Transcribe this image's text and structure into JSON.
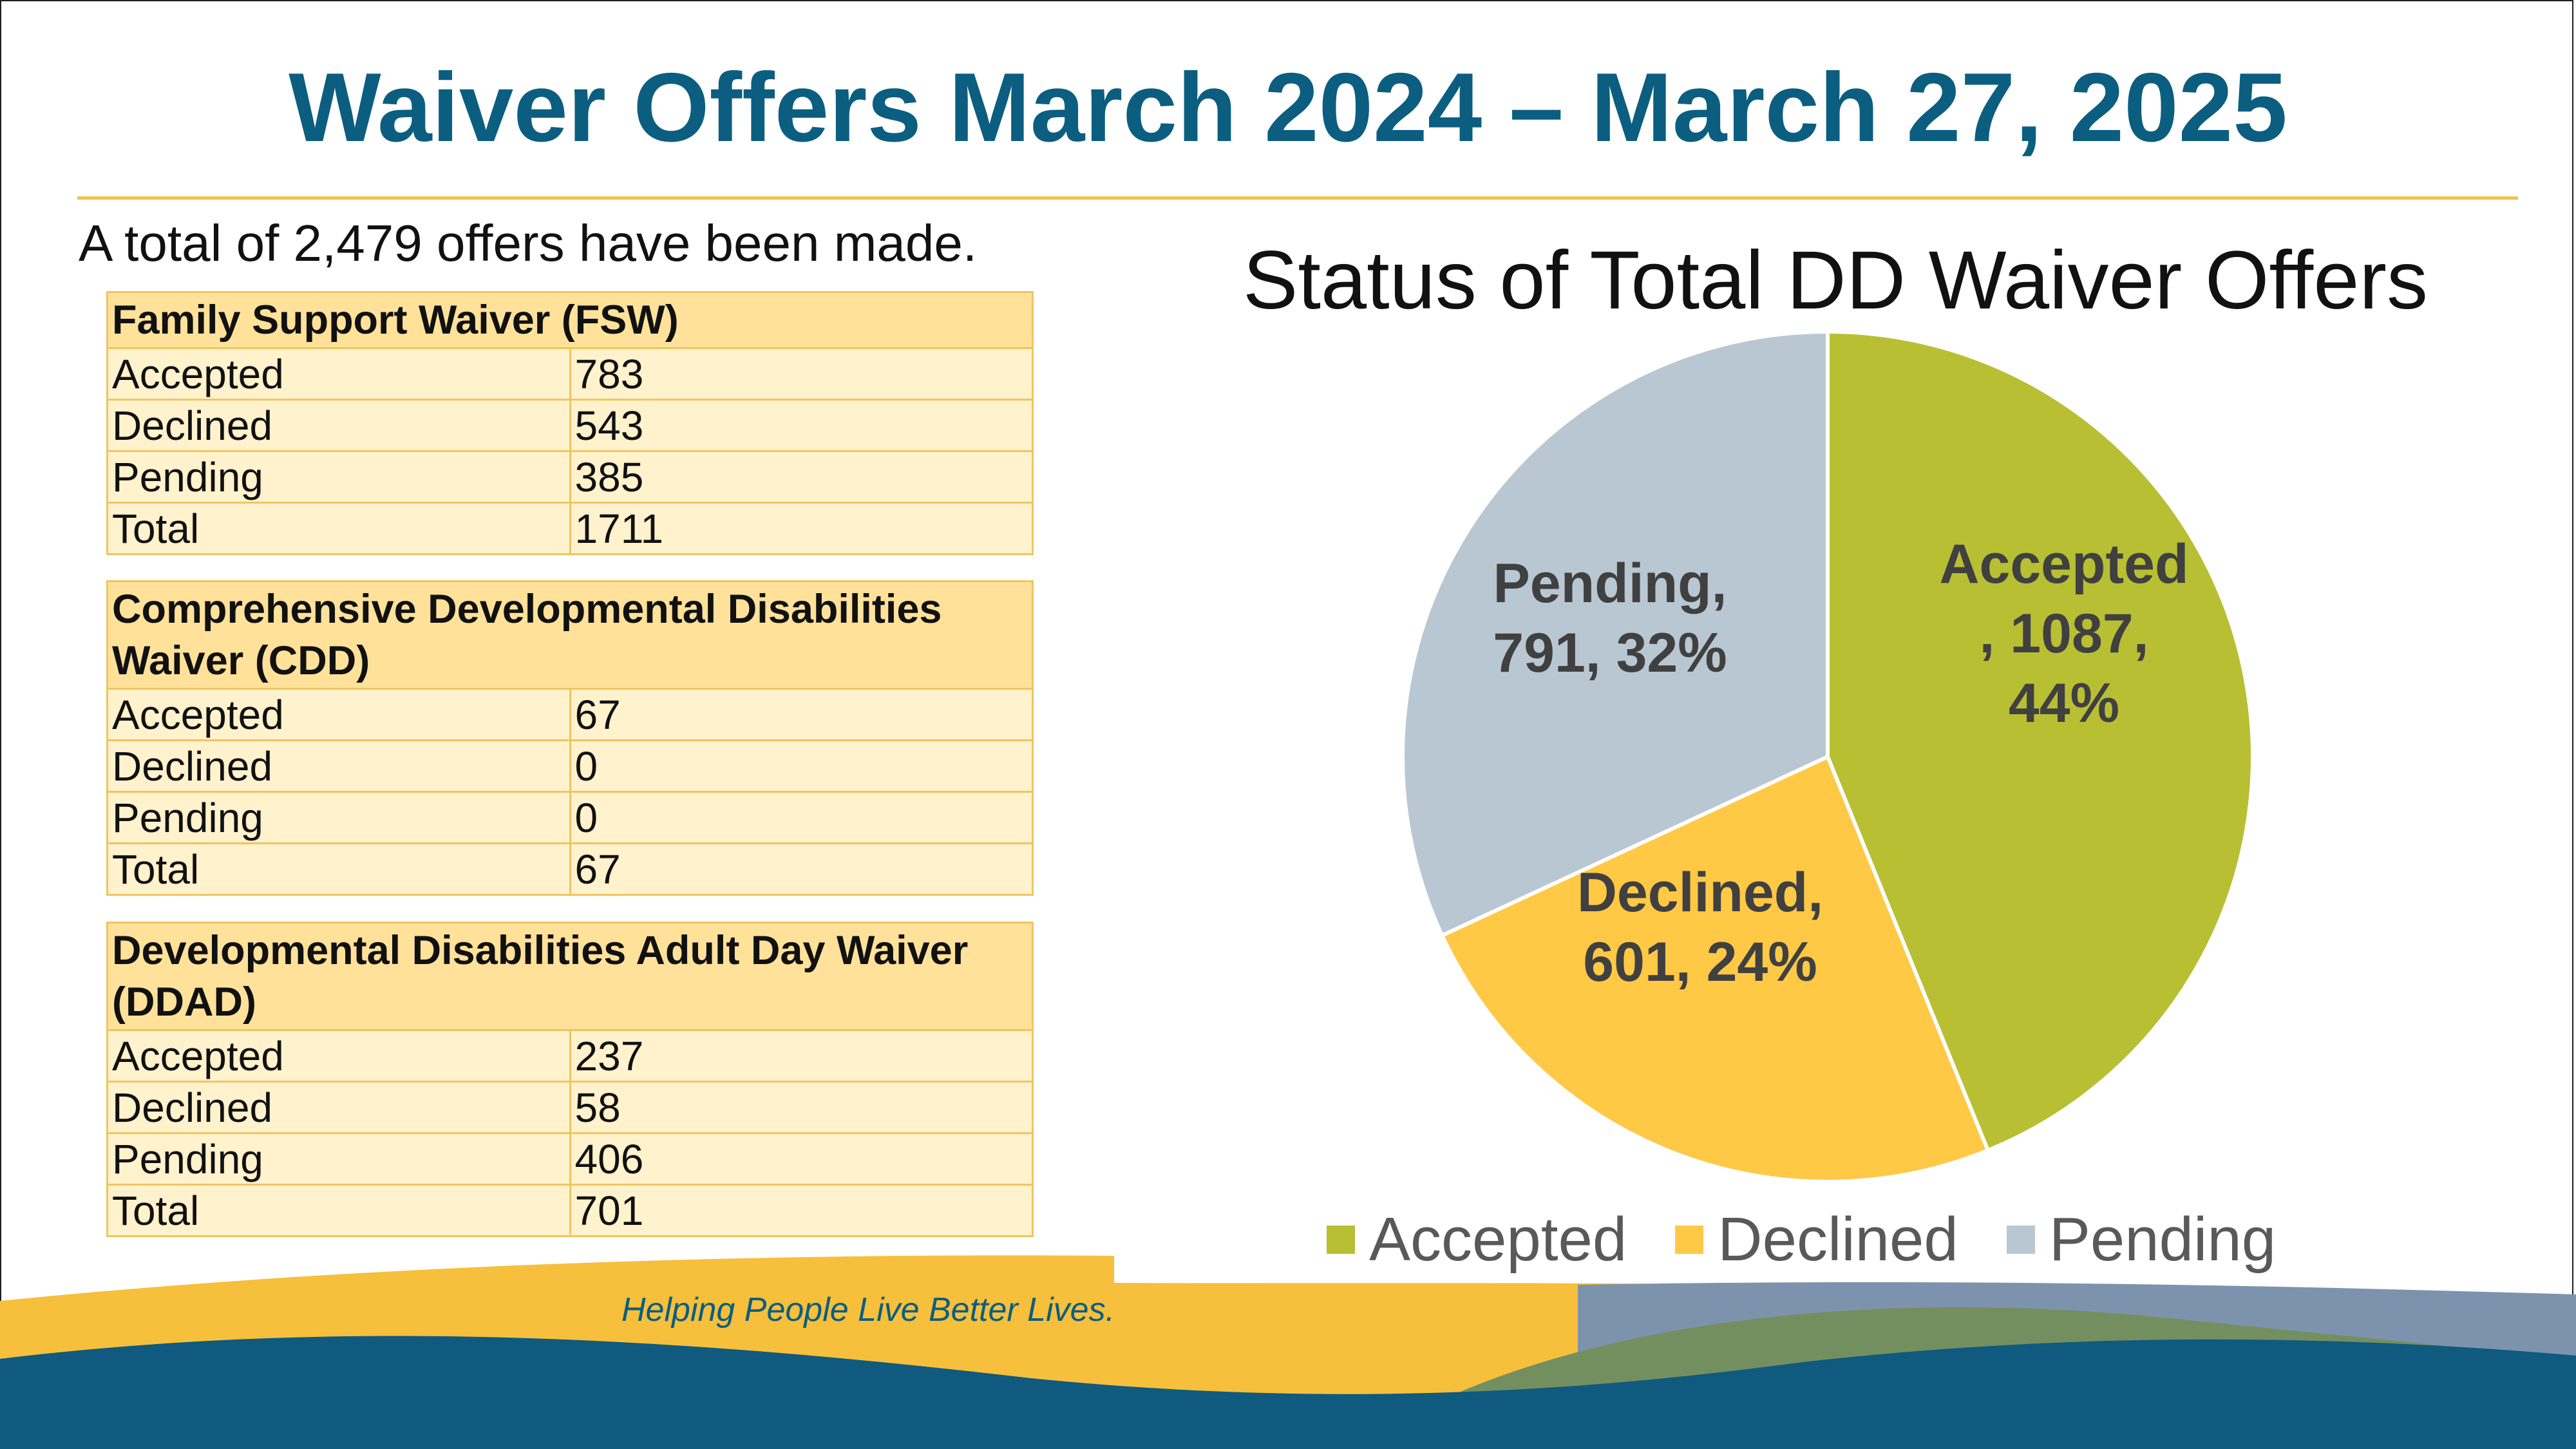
{
  "title": "Waiver Offers March 2024 – March 27, 2025",
  "summary": "A total of 2,479 offers have been made.",
  "tables": [
    {
      "header": "Family Support Waiver (FSW)",
      "rows": [
        {
          "label": "Accepted",
          "value": "783"
        },
        {
          "label": "Declined",
          "value": "543"
        },
        {
          "label": "Pending",
          "value": "385"
        },
        {
          "label": "Total",
          "value": "1711"
        }
      ]
    },
    {
      "header": "Comprehensive Developmental Disabilities Waiver (CDD)",
      "rows": [
        {
          "label": "Accepted",
          "value": "67"
        },
        {
          "label": "Declined",
          "value": "0"
        },
        {
          "label": "Pending",
          "value": "0"
        },
        {
          "label": "Total",
          "value": "67"
        }
      ]
    },
    {
      "header": "Developmental Disabilities Adult Day Waiver (DDAD)",
      "rows": [
        {
          "label": "Accepted",
          "value": "237"
        },
        {
          "label": "Declined",
          "value": "58"
        },
        {
          "label": "Pending",
          "value": "406"
        },
        {
          "label": "Total",
          "value": "701"
        }
      ]
    }
  ],
  "chart_data": {
    "type": "pie",
    "title": "Status of Total DD Waiver Offers",
    "categories": [
      "Accepted",
      "Declined",
      "Pending"
    ],
    "values": [
      1087,
      601,
      791
    ],
    "percents": [
      "44%",
      "24%",
      "32%"
    ],
    "data_labels": [
      [
        "Accepted",
        ", 1087,",
        "44%"
      ],
      [
        "Declined,",
        "601, 24%"
      ],
      [
        "Pending,",
        "791, 32%"
      ]
    ],
    "colors": [
      "#b8bf33",
      "#ffc845",
      "#b9c7d3"
    ],
    "legend_position": "bottom",
    "start_angle": "12 o'clock",
    "direction": "clockwise"
  },
  "tagline": "Helping People Live Better Lives.",
  "colors": {
    "title": "#0b5e80",
    "rule": "#f2c14a",
    "table_header": "#ffe19a",
    "table_cell": "#fff2cc",
    "table_border": "#f0c560",
    "wave_yellow": "#f6bf3c",
    "wave_slate": "#7d93ad",
    "wave_green": "#748f5f",
    "wave_navy": "#0f5a7e"
  }
}
